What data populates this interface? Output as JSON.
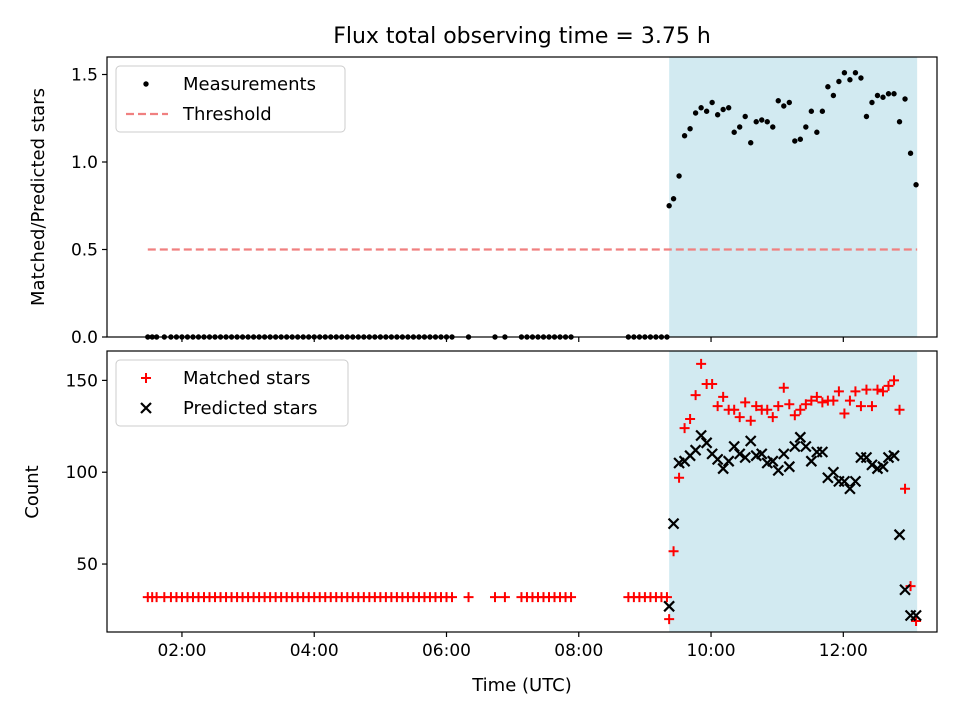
{
  "chart_data": [
    {
      "type": "scatter",
      "title": "Flux total observing time = 3.75 h",
      "xlabel": "",
      "ylabel": "Matched/Predicted stars",
      "ylim": [
        0,
        1.6
      ],
      "yticks": [
        "0.0",
        "0.5",
        "1.0",
        "1.5"
      ],
      "shaded_interval": [
        "09:22",
        "13:07"
      ],
      "shaded_color": "#add8e6",
      "legend_placement": "top-left",
      "series": [
        {
          "name": "Measurements",
          "marker": "dot",
          "color": "#000000",
          "x": [
            "01:29",
            "01:33",
            "01:37",
            "01:44",
            "01:50",
            "01:55",
            "02:00",
            "02:05",
            "02:10",
            "02:15",
            "02:20",
            "02:25",
            "02:30",
            "02:35",
            "02:40",
            "02:45",
            "02:50",
            "02:55",
            "03:00",
            "03:05",
            "03:10",
            "03:15",
            "03:20",
            "03:25",
            "03:30",
            "03:35",
            "03:40",
            "03:45",
            "03:50",
            "03:55",
            "04:00",
            "04:05",
            "04:10",
            "04:15",
            "04:20",
            "04:25",
            "04:30",
            "04:35",
            "04:40",
            "04:45",
            "04:50",
            "04:55",
            "05:00",
            "05:05",
            "05:10",
            "05:15",
            "05:20",
            "05:25",
            "05:30",
            "05:35",
            "05:40",
            "05:45",
            "05:50",
            "05:55",
            "06:00",
            "06:05",
            "06:20",
            "06:44",
            "06:53",
            "07:08",
            "07:13",
            "07:18",
            "07:23",
            "07:28",
            "07:33",
            "07:38",
            "07:43",
            "07:48",
            "07:53",
            "08:45",
            "08:50",
            "08:55",
            "09:00",
            "09:05",
            "09:10",
            "09:15",
            "09:20",
            "09:22",
            "09:26",
            "09:31",
            "09:36",
            "09:41",
            "09:46",
            "09:51",
            "09:56",
            "10:01",
            "10:06",
            "10:11",
            "10:16",
            "10:21",
            "10:26",
            "10:31",
            "10:36",
            "10:41",
            "10:46",
            "10:51",
            "10:56",
            "11:01",
            "11:06",
            "11:11",
            "11:16",
            "11:21",
            "11:26",
            "11:31",
            "11:36",
            "11:41",
            "11:46",
            "11:51",
            "11:56",
            "12:01",
            "12:06",
            "12:11",
            "12:16",
            "12:21",
            "12:26",
            "12:31",
            "12:36",
            "12:41",
            "12:46",
            "12:51",
            "12:56",
            "13:01",
            "13:06"
          ],
          "y": [
            0,
            0,
            0,
            0,
            0,
            0,
            0,
            0,
            0,
            0,
            0,
            0,
            0,
            0,
            0,
            0,
            0,
            0,
            0,
            0,
            0,
            0,
            0,
            0,
            0,
            0,
            0,
            0,
            0,
            0,
            0,
            0,
            0,
            0,
            0,
            0,
            0,
            0,
            0,
            0,
            0,
            0,
            0,
            0,
            0,
            0,
            0,
            0,
            0,
            0,
            0,
            0,
            0,
            0,
            0,
            0,
            0,
            0,
            0,
            0,
            0,
            0,
            0,
            0,
            0,
            0,
            0,
            0,
            0,
            0,
            0,
            0,
            0,
            0,
            0,
            0,
            0,
            0.75,
            0.79,
            0.92,
            1.15,
            1.19,
            1.28,
            1.31,
            1.29,
            1.34,
            1.27,
            1.3,
            1.31,
            1.17,
            1.2,
            1.26,
            1.11,
            1.23,
            1.24,
            1.23,
            1.2,
            1.35,
            1.32,
            1.34,
            1.12,
            1.13,
            1.2,
            1.29,
            1.17,
            1.29,
            1.43,
            1.38,
            1.46,
            1.51,
            1.47,
            1.51,
            1.48,
            1.26,
            1.34,
            1.38,
            1.37,
            1.39,
            1.39,
            1.23,
            1.36,
            1.05,
            0.87
          ]
        },
        {
          "name": "Threshold",
          "marker": "dashed-line",
          "color": "#f08080",
          "x": [
            "01:29",
            "13:07"
          ],
          "y": [
            0.5,
            0.5
          ]
        }
      ]
    },
    {
      "type": "scatter",
      "title": "",
      "xlabel": "Time (UTC)",
      "ylabel": "Count",
      "ylim": [
        13,
        166
      ],
      "yticks": [
        "50",
        "100",
        "150"
      ],
      "xticks": [
        "02:00",
        "04:00",
        "06:00",
        "08:00",
        "10:00",
        "12:00"
      ],
      "xlim": [
        "00:52",
        "13:25"
      ],
      "shaded_interval": [
        "09:22",
        "13:07"
      ],
      "shaded_color": "#add8e6",
      "legend_placement": "top-left",
      "series": [
        {
          "name": "Matched stars",
          "marker": "plus",
          "color": "#ff0000",
          "x": [
            "01:29",
            "01:33",
            "01:37",
            "01:44",
            "01:50",
            "01:55",
            "02:00",
            "02:05",
            "02:10",
            "02:15",
            "02:20",
            "02:25",
            "02:30",
            "02:35",
            "02:40",
            "02:45",
            "02:50",
            "02:55",
            "03:00",
            "03:05",
            "03:10",
            "03:15",
            "03:20",
            "03:25",
            "03:30",
            "03:35",
            "03:40",
            "03:45",
            "03:50",
            "03:55",
            "04:00",
            "04:05",
            "04:10",
            "04:15",
            "04:20",
            "04:25",
            "04:30",
            "04:35",
            "04:40",
            "04:45",
            "04:50",
            "04:55",
            "05:00",
            "05:05",
            "05:10",
            "05:15",
            "05:20",
            "05:25",
            "05:30",
            "05:35",
            "05:40",
            "05:45",
            "05:50",
            "05:55",
            "06:00",
            "06:05",
            "06:20",
            "06:44",
            "06:53",
            "07:08",
            "07:13",
            "07:18",
            "07:23",
            "07:28",
            "07:33",
            "07:38",
            "07:43",
            "07:48",
            "07:53",
            "08:45",
            "08:50",
            "08:55",
            "09:00",
            "09:05",
            "09:10",
            "09:15",
            "09:20",
            "09:22",
            "09:26",
            "09:31",
            "09:36",
            "09:41",
            "09:46",
            "09:51",
            "09:56",
            "10:01",
            "10:06",
            "10:11",
            "10:16",
            "10:21",
            "10:26",
            "10:31",
            "10:36",
            "10:41",
            "10:46",
            "10:51",
            "10:56",
            "11:01",
            "11:06",
            "11:11",
            "11:16",
            "11:21",
            "11:26",
            "11:31",
            "11:36",
            "11:41",
            "11:46",
            "11:51",
            "11:56",
            "12:01",
            "12:06",
            "12:11",
            "12:16",
            "12:21",
            "12:26",
            "12:31",
            "12:36",
            "12:41",
            "12:46",
            "12:51",
            "12:56",
            "13:01",
            "13:06"
          ],
          "y": [
            32,
            32,
            32,
            32,
            32,
            32,
            32,
            32,
            32,
            32,
            32,
            32,
            32,
            32,
            32,
            32,
            32,
            32,
            32,
            32,
            32,
            32,
            32,
            32,
            32,
            32,
            32,
            32,
            32,
            32,
            32,
            32,
            32,
            32,
            32,
            32,
            32,
            32,
            32,
            32,
            32,
            32,
            32,
            32,
            32,
            32,
            32,
            32,
            32,
            32,
            32,
            32,
            32,
            32,
            32,
            32,
            32,
            32,
            32,
            32,
            32,
            32,
            32,
            32,
            32,
            32,
            32,
            32,
            32,
            32,
            32,
            32,
            32,
            32,
            32,
            32,
            32,
            20,
            57,
            97,
            124,
            129,
            142,
            159,
            148,
            148,
            136,
            141,
            134,
            134,
            130,
            138,
            128,
            136,
            134,
            134,
            130,
            136,
            146,
            137,
            131,
            134,
            137,
            139,
            141,
            138,
            139,
            139,
            144,
            132,
            139,
            144,
            136,
            145,
            136,
            145,
            144,
            147,
            150,
            134,
            91,
            38,
            19
          ]
        },
        {
          "name": "Predicted stars",
          "marker": "x",
          "color": "#000000",
          "x": [
            "09:22",
            "09:26",
            "09:31",
            "09:36",
            "09:41",
            "09:46",
            "09:51",
            "09:56",
            "10:01",
            "10:06",
            "10:11",
            "10:16",
            "10:21",
            "10:26",
            "10:31",
            "10:36",
            "10:41",
            "10:46",
            "10:51",
            "10:56",
            "11:01",
            "11:06",
            "11:11",
            "11:16",
            "11:21",
            "11:26",
            "11:31",
            "11:36",
            "11:41",
            "11:46",
            "11:51",
            "11:56",
            "12:01",
            "12:06",
            "12:11",
            "12:16",
            "12:21",
            "12:26",
            "12:31",
            "12:36",
            "12:41",
            "12:46",
            "12:51",
            "12:56",
            "13:01",
            "13:06"
          ],
          "y": [
            27,
            72,
            105,
            106,
            109,
            112,
            120,
            116,
            110,
            107,
            102,
            106,
            114,
            110,
            108,
            117,
            109,
            110,
            105,
            106,
            101,
            110,
            103,
            114,
            119,
            114,
            106,
            111,
            111,
            97,
            100,
            95,
            95,
            91,
            95,
            108,
            108,
            104,
            102,
            103,
            108,
            109,
            66,
            36,
            22,
            22
          ]
        }
      ]
    }
  ]
}
